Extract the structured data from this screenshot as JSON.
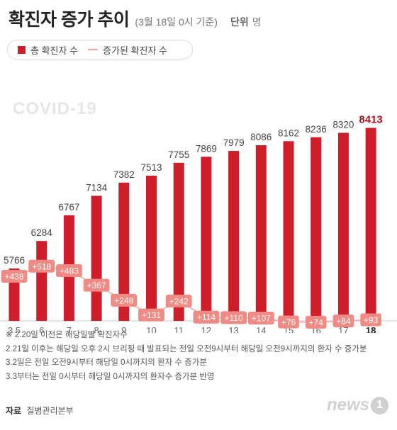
{
  "header": {
    "title": "확진자 증가 추이",
    "subtitle": "(3월 18일 0시 기준)",
    "unit_label": "단위",
    "unit_value": "명"
  },
  "legend": {
    "total_label": "총 확진자 수",
    "increase_label": "증가된 확진자 수"
  },
  "watermark": "COVID-19",
  "colors": {
    "bar": "#cf1d2a",
    "last_bar_label": "#a8101d",
    "line": "#f3a39d",
    "badge": "#ef8b84"
  },
  "chart_data": {
    "type": "bar",
    "categories": [
      "3.5",
      "6",
      "7",
      "8",
      "9",
      "10",
      "11",
      "12",
      "13",
      "14",
      "15",
      "16",
      "17",
      "18"
    ],
    "series": [
      {
        "name": "총 확진자 수",
        "type": "bar",
        "values": [
          5766,
          6284,
          6767,
          7134,
          7382,
          7513,
          7755,
          7869,
          7979,
          8086,
          8162,
          8236,
          8320,
          8413
        ],
        "labels": [
          "5766",
          "6284",
          "6767",
          "7134",
          "7382",
          "7513",
          "7755",
          "7869",
          "7979",
          "8086",
          "8162",
          "8236",
          "8320",
          "8413"
        ]
      },
      {
        "name": "증가된 확진자 수",
        "type": "line",
        "values": [
          438,
          518,
          483,
          367,
          248,
          131,
          242,
          114,
          110,
          107,
          76,
          74,
          84,
          93
        ],
        "labels": [
          "+438",
          "+518",
          "+483",
          "+367",
          "+248",
          "+131",
          "+242",
          "+114",
          "+110",
          "+107",
          "+76",
          "+74",
          "+84",
          "+93"
        ]
      }
    ]
  },
  "notes": [
    "※ 2.20일 이전은 해당일별 확진자수",
    "2.21일 이후는 해당일 오후 2시 브리핑 때 발표되는 전일 오전9시부터 해당일 오전9시까지의 환자 수 증가분",
    "3.2일은 전일 오전9시부터 해당일 0시까지의 환자 수 증가분",
    "3.3부터는 전일 0시부터 해당일 0시까지의 환자수 증가분 반영"
  ],
  "source": {
    "label": "자료",
    "value": "질병관리본부"
  },
  "logo": {
    "text": "news",
    "mark": "1"
  }
}
